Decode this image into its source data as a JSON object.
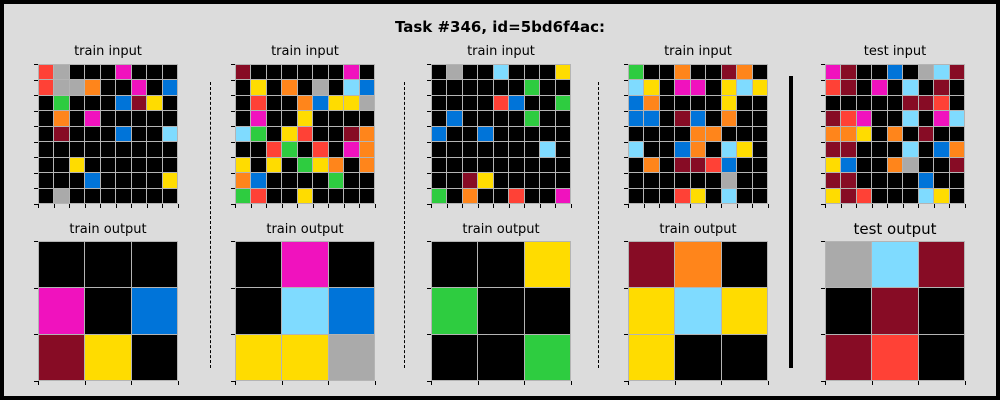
{
  "title": "Task #346, id=5bd6f4ac:",
  "palette": {
    "0": "#000000",
    "1": "#0074d9",
    "2": "#ff4136",
    "3": "#2ecc40",
    "4": "#ffdc00",
    "5": "#aaaaaa",
    "6": "#f012be",
    "7": "#ff851b",
    "8": "#7fdbff",
    "9": "#870c25"
  },
  "panels": [
    {
      "input_label": "train input",
      "output_label": "train output",
      "input": [
        [
          2,
          5,
          0,
          0,
          0,
          6,
          0,
          0,
          0
        ],
        [
          2,
          5,
          5,
          7,
          0,
          0,
          6,
          0,
          1
        ],
        [
          0,
          3,
          0,
          0,
          0,
          1,
          9,
          4,
          0
        ],
        [
          0,
          7,
          0,
          6,
          0,
          0,
          0,
          0,
          0
        ],
        [
          0,
          9,
          0,
          0,
          0,
          1,
          0,
          0,
          8
        ],
        [
          0,
          0,
          0,
          0,
          0,
          0,
          0,
          0,
          0
        ],
        [
          0,
          0,
          4,
          0,
          0,
          0,
          0,
          0,
          0
        ],
        [
          0,
          0,
          0,
          1,
          0,
          0,
          0,
          0,
          4
        ],
        [
          0,
          5,
          0,
          0,
          0,
          0,
          0,
          0,
          0
        ]
      ],
      "output": [
        [
          0,
          0,
          0
        ],
        [
          6,
          0,
          1
        ],
        [
          9,
          4,
          0
        ]
      ]
    },
    {
      "input_label": "train input",
      "output_label": "train output",
      "input": [
        [
          9,
          0,
          0,
          0,
          0,
          0,
          0,
          6,
          0
        ],
        [
          0,
          4,
          0,
          7,
          0,
          5,
          0,
          8,
          1
        ],
        [
          0,
          2,
          0,
          0,
          7,
          1,
          4,
          4,
          5
        ],
        [
          0,
          6,
          0,
          0,
          4,
          0,
          0,
          0,
          0
        ],
        [
          8,
          3,
          0,
          4,
          2,
          0,
          0,
          9,
          7
        ],
        [
          0,
          0,
          2,
          3,
          0,
          2,
          0,
          6,
          7
        ],
        [
          4,
          0,
          4,
          0,
          3,
          4,
          7,
          0,
          7
        ],
        [
          7,
          1,
          0,
          0,
          0,
          0,
          3,
          0,
          0
        ],
        [
          3,
          2,
          0,
          0,
          4,
          0,
          0,
          0,
          0
        ]
      ],
      "output": [
        [
          0,
          6,
          0
        ],
        [
          0,
          8,
          1
        ],
        [
          4,
          4,
          5
        ]
      ]
    },
    {
      "input_label": "train input",
      "output_label": "train output",
      "input": [
        [
          0,
          5,
          0,
          0,
          8,
          0,
          0,
          0,
          4
        ],
        [
          0,
          0,
          0,
          0,
          0,
          0,
          3,
          0,
          0
        ],
        [
          0,
          0,
          0,
          0,
          2,
          1,
          0,
          0,
          3
        ],
        [
          0,
          1,
          0,
          0,
          0,
          0,
          3,
          0,
          0
        ],
        [
          1,
          0,
          0,
          1,
          0,
          0,
          0,
          0,
          0
        ],
        [
          0,
          0,
          0,
          0,
          0,
          0,
          0,
          8,
          0
        ],
        [
          0,
          0,
          0,
          0,
          0,
          0,
          0,
          0,
          0
        ],
        [
          0,
          0,
          9,
          4,
          0,
          0,
          0,
          0,
          0
        ],
        [
          3,
          0,
          7,
          0,
          0,
          2,
          0,
          0,
          6
        ]
      ],
      "output": [
        [
          0,
          0,
          4
        ],
        [
          3,
          0,
          0
        ],
        [
          0,
          0,
          3
        ]
      ]
    },
    {
      "input_label": "train input",
      "output_label": "train output",
      "input": [
        [
          3,
          0,
          0,
          7,
          0,
          0,
          9,
          7,
          0
        ],
        [
          8,
          4,
          0,
          6,
          6,
          0,
          4,
          8,
          4
        ],
        [
          1,
          7,
          0,
          0,
          0,
          0,
          4,
          0,
          0
        ],
        [
          1,
          1,
          0,
          9,
          1,
          0,
          7,
          0,
          0
        ],
        [
          0,
          0,
          0,
          0,
          7,
          7,
          0,
          0,
          0
        ],
        [
          8,
          0,
          0,
          1,
          7,
          0,
          8,
          4,
          0
        ],
        [
          0,
          7,
          0,
          9,
          9,
          2,
          1,
          0,
          0
        ],
        [
          0,
          0,
          0,
          0,
          0,
          0,
          5,
          0,
          0
        ],
        [
          0,
          0,
          0,
          2,
          4,
          0,
          8,
          0,
          0
        ]
      ],
      "output": [
        [
          9,
          7,
          0
        ],
        [
          4,
          8,
          4
        ],
        [
          4,
          0,
          0
        ]
      ]
    },
    {
      "input_label": "test input",
      "output_label": "test output",
      "input": [
        [
          6,
          9,
          0,
          0,
          1,
          0,
          5,
          8,
          9
        ],
        [
          2,
          9,
          0,
          6,
          0,
          8,
          0,
          9,
          0
        ],
        [
          0,
          0,
          0,
          0,
          0,
          9,
          9,
          2,
          0
        ],
        [
          9,
          2,
          6,
          0,
          0,
          8,
          0,
          6,
          8
        ],
        [
          7,
          7,
          4,
          0,
          7,
          0,
          9,
          0,
          0
        ],
        [
          9,
          9,
          0,
          0,
          0,
          8,
          0,
          1,
          7
        ],
        [
          4,
          1,
          0,
          0,
          7,
          5,
          0,
          0,
          9
        ],
        [
          9,
          9,
          0,
          0,
          0,
          0,
          1,
          0,
          0
        ],
        [
          4,
          9,
          2,
          0,
          0,
          0,
          8,
          4,
          0
        ]
      ],
      "output": [
        [
          5,
          8,
          9
        ],
        [
          0,
          9,
          0
        ],
        [
          9,
          2,
          0
        ]
      ]
    }
  ]
}
